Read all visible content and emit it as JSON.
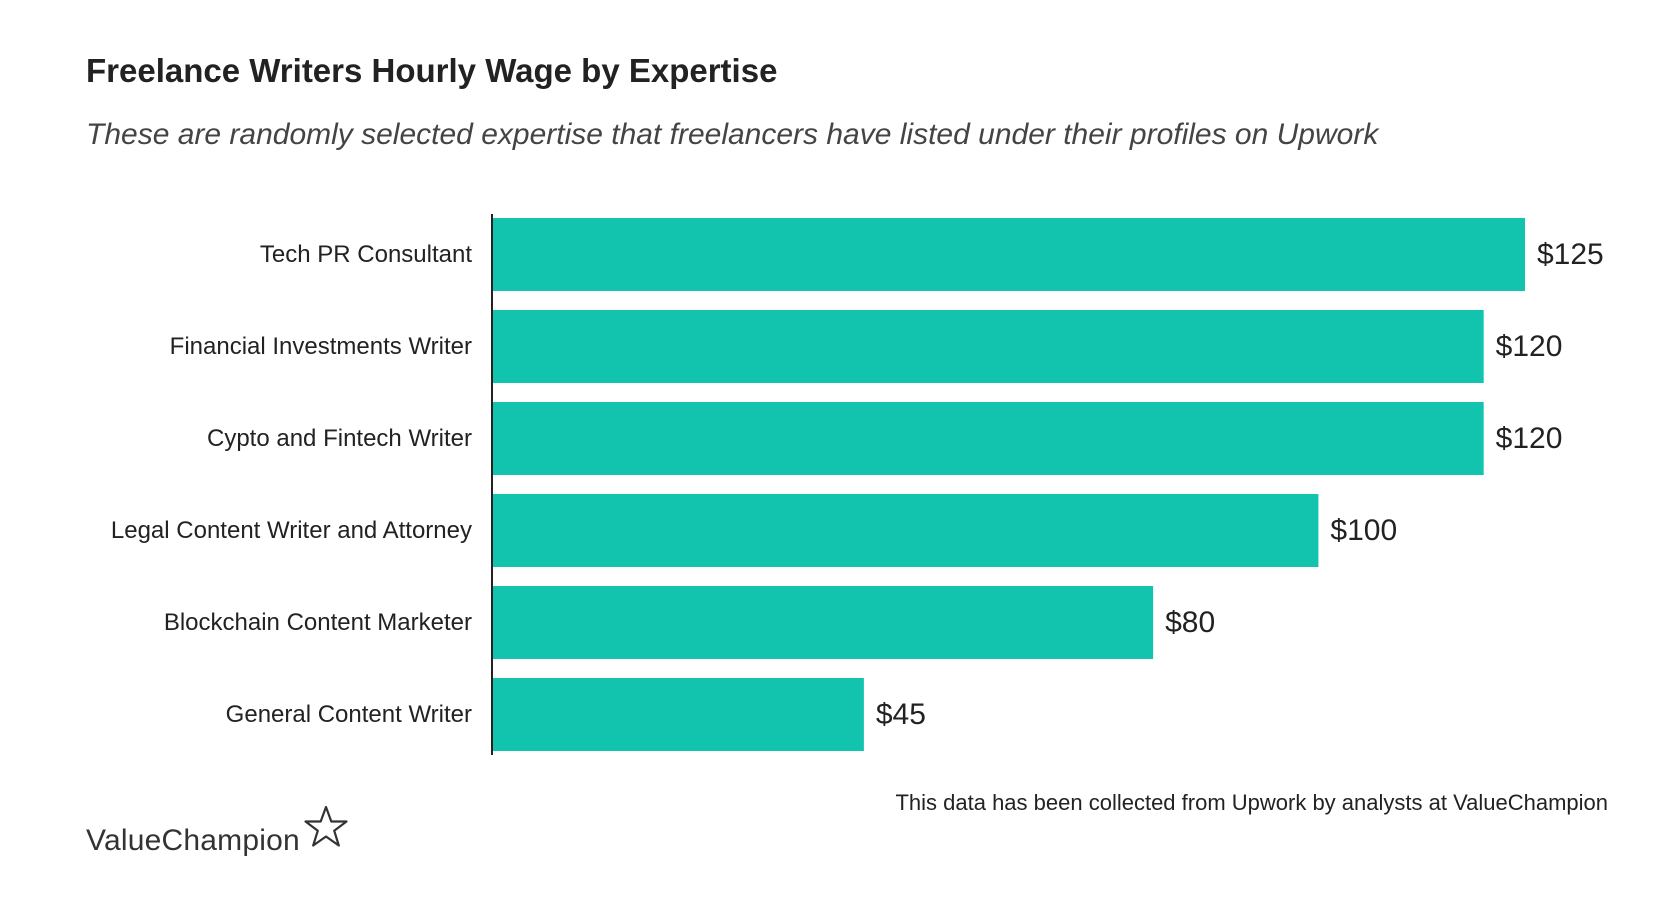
{
  "header": {
    "title": "Freelance Writers Hourly Wage by Expertise",
    "subtitle": "These are randomly selected expertise that freelancers have listed under their profiles on Upwork"
  },
  "footer": {
    "source": "This data has been collected from Upwork by analysts at ValueChampion",
    "brand": "ValueChampion",
    "brand_icon": "star-outline-icon"
  },
  "colors": {
    "bar": "#12c3ae",
    "axis": "#222222",
    "text": "#222222"
  },
  "chart_data": {
    "type": "bar",
    "orientation": "horizontal",
    "title": "Freelance Writers Hourly Wage by Expertise",
    "subtitle": "These are randomly selected expertise that freelancers have listed under their profiles on Upwork",
    "categories": [
      "Tech PR Consultant",
      "Financial Investments Writer",
      "Cypto and Fintech Writer",
      "Legal Content Writer and Attorney",
      "Blockchain Content Marketer",
      "General Content Writer"
    ],
    "values": [
      125,
      120,
      120,
      100,
      80,
      45
    ],
    "value_labels": [
      "$125",
      "$120",
      "$120",
      "$100",
      "$80",
      "$45"
    ],
    "xlim": [
      0,
      125
    ],
    "grid": false,
    "legend": "none"
  }
}
